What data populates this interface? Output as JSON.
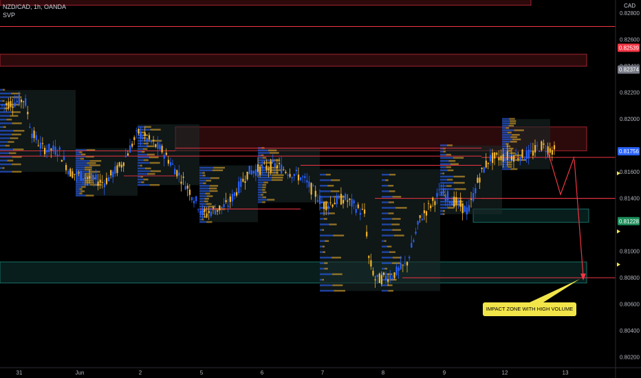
{
  "header": {
    "symbol_line": "NZD/CAD, 1h, OANDA",
    "indicator": "SVP"
  },
  "currency": "CAD",
  "price_axis": {
    "ticks": [
      "0.82800",
      "0.82600",
      "0.82400",
      "0.82200",
      "0.82000",
      "0.81600",
      "0.81400",
      "0.81000",
      "0.80800",
      "0.80600",
      "0.80400",
      "0.80200"
    ],
    "badges": [
      {
        "label": "0.82539",
        "value": 0.82539,
        "color": "#f23645"
      },
      {
        "label": "0.82374",
        "value": 0.82374,
        "color": "#787b86"
      },
      {
        "label": "0.81756",
        "value": 0.81756,
        "color": "#2962ff"
      },
      {
        "label": "0.81228",
        "value": 0.81228,
        "color": "#1e8e5a"
      }
    ]
  },
  "time_axis": {
    "labels": [
      "31",
      "Jun",
      "2",
      "5",
      "6",
      "7",
      "8",
      "9",
      "12",
      "13"
    ]
  },
  "annotation": {
    "callout_text": "IMPACT ZONE WITH HIGH VOLUME"
  },
  "chart_data": {
    "type": "candlestick",
    "ylim": [
      0.8012,
      0.829
    ],
    "levels": [
      0.827,
      0.8172,
      0.8165,
      0.814,
      0.8132,
      0.808
    ],
    "zones": [
      {
        "name": "resistance-top",
        "y0": 0.8286,
        "y1": 0.8293,
        "color": "#f23645"
      },
      {
        "name": "resistance-upper",
        "y0": 0.824,
        "y1": 0.8249,
        "color": "#f23645"
      },
      {
        "name": "resistance-mid",
        "y0": 0.8176,
        "y1": 0.8194,
        "color": "#f23645"
      },
      {
        "name": "support-mid",
        "y0": 0.8122,
        "y1": 0.8132,
        "color": "#26a69a"
      },
      {
        "name": "support-impact",
        "y0": 0.8076,
        "y1": 0.8092,
        "color": "#26a69a"
      }
    ],
    "colors": {
      "up": "#2962ff",
      "down": "#f5b731",
      "line": "#f23645"
    }
  }
}
